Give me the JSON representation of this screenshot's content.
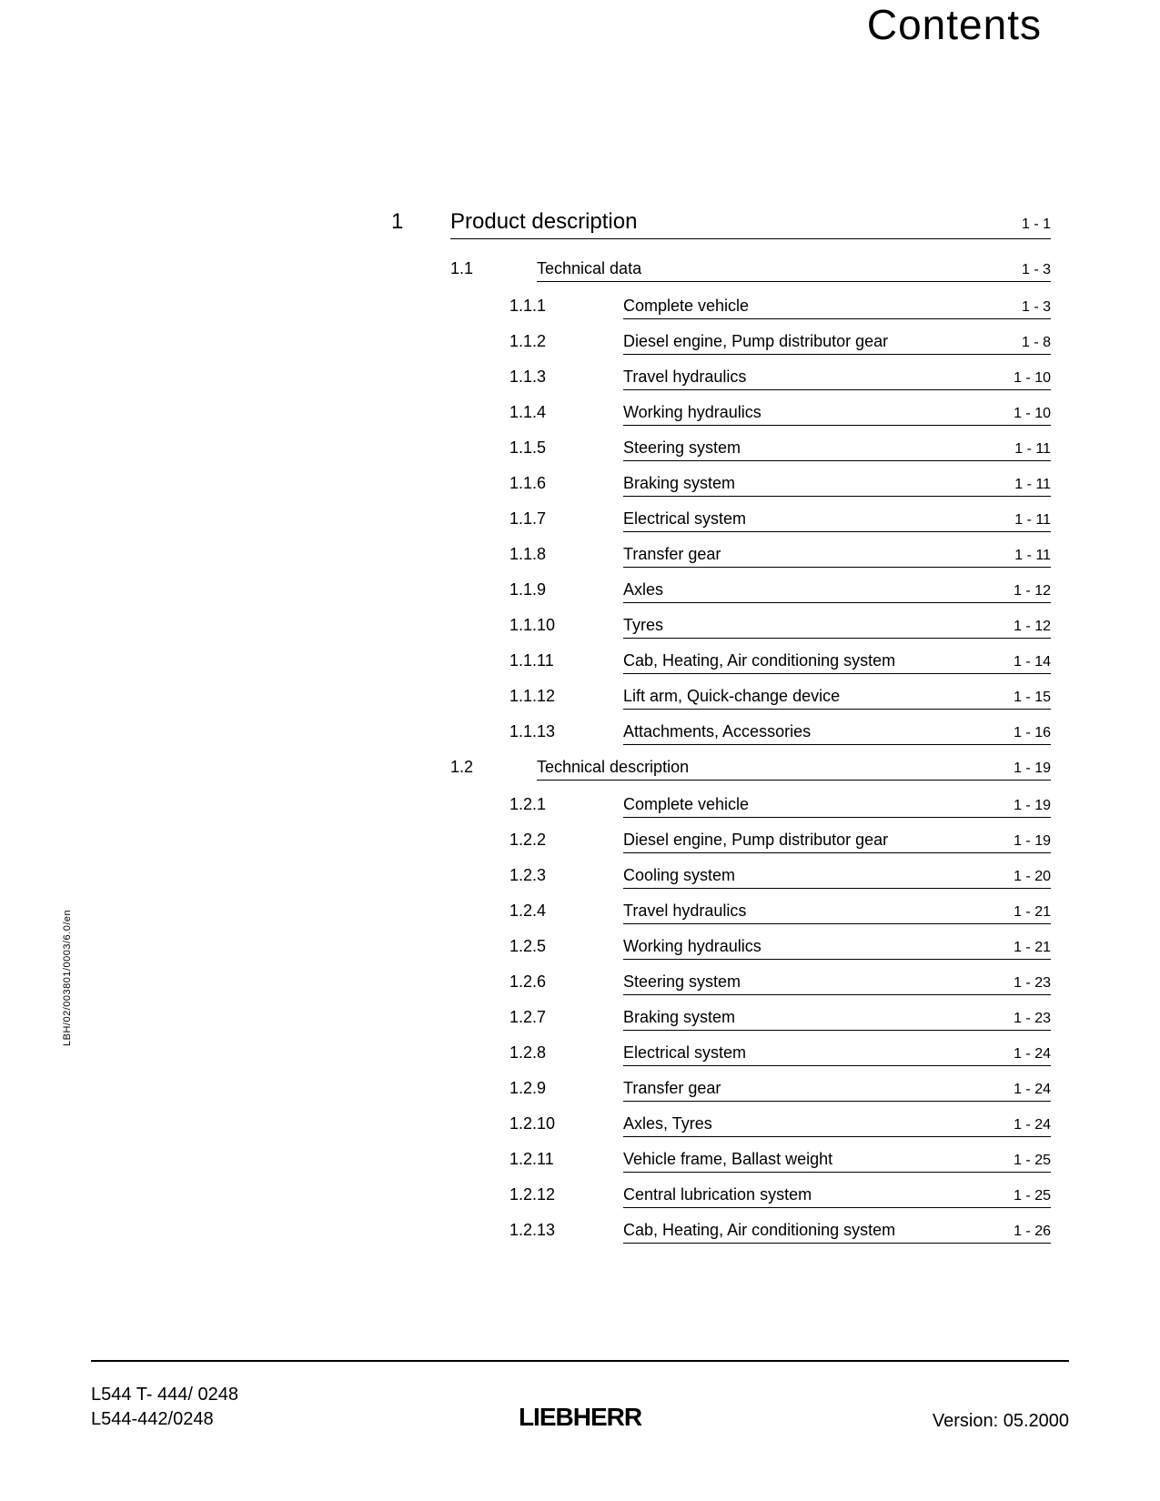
{
  "page_title": "Contents",
  "side_label": "LBH/02/003801/0003/6.0/en",
  "toc": [
    {
      "level": 1,
      "num": "1",
      "title": "Product description",
      "page": "1 - 1"
    },
    {
      "level": 2,
      "num": "1.1",
      "title": "Technical data",
      "page": "1 - 3"
    },
    {
      "level": 3,
      "num": "1.1.1",
      "title": "Complete vehicle",
      "page": "1 - 3"
    },
    {
      "level": 3,
      "num": "1.1.2",
      "title": "Diesel engine, Pump distributor gear",
      "page": "1 - 8"
    },
    {
      "level": 3,
      "num": "1.1.3",
      "title": "Travel hydraulics",
      "page": "1 - 10"
    },
    {
      "level": 3,
      "num": "1.1.4",
      "title": "Working hydraulics",
      "page": "1 - 10"
    },
    {
      "level": 3,
      "num": "1.1.5",
      "title": "Steering system",
      "page": "1 - 11"
    },
    {
      "level": 3,
      "num": "1.1.6",
      "title": "Braking system",
      "page": "1 - 11"
    },
    {
      "level": 3,
      "num": "1.1.7",
      "title": "Electrical system",
      "page": "1 - 11"
    },
    {
      "level": 3,
      "num": "1.1.8",
      "title": "Transfer gear",
      "page": "1 - 11"
    },
    {
      "level": 3,
      "num": "1.1.9",
      "title": "Axles",
      "page": "1 - 12"
    },
    {
      "level": 3,
      "num": "1.1.10",
      "title": "Tyres",
      "page": "1 - 12"
    },
    {
      "level": 3,
      "num": "1.1.11",
      "title": "Cab, Heating, Air conditioning system",
      "page": "1 - 14"
    },
    {
      "level": 3,
      "num": "1.1.12",
      "title": "Lift arm, Quick-change device",
      "page": "1 - 15"
    },
    {
      "level": 3,
      "num": "1.1.13",
      "title": "Attachments, Accessories",
      "page": "1 - 16"
    },
    {
      "level": 2,
      "num": "1.2",
      "title": "Technical description",
      "page": "1 - 19"
    },
    {
      "level": 3,
      "num": "1.2.1",
      "title": "Complete vehicle",
      "page": "1 - 19"
    },
    {
      "level": 3,
      "num": "1.2.2",
      "title": "Diesel engine, Pump distributor gear",
      "page": "1 - 19"
    },
    {
      "level": 3,
      "num": "1.2.3",
      "title": "Cooling system",
      "page": "1 - 20"
    },
    {
      "level": 3,
      "num": "1.2.4",
      "title": "Travel hydraulics",
      "page": "1 - 21"
    },
    {
      "level": 3,
      "num": "1.2.5",
      "title": "Working hydraulics",
      "page": "1 - 21"
    },
    {
      "level": 3,
      "num": "1.2.6",
      "title": "Steering system",
      "page": "1 - 23"
    },
    {
      "level": 3,
      "num": "1.2.7",
      "title": "Braking system",
      "page": "1 - 23"
    },
    {
      "level": 3,
      "num": "1.2.8",
      "title": "Electrical system",
      "page": "1 - 24"
    },
    {
      "level": 3,
      "num": "1.2.9",
      "title": "Transfer gear",
      "page": "1 - 24"
    },
    {
      "level": 3,
      "num": "1.2.10",
      "title": "Axles, Tyres",
      "page": "1 - 24"
    },
    {
      "level": 3,
      "num": "1.2.11",
      "title": "Vehicle frame, Ballast weight",
      "page": "1 - 25"
    },
    {
      "level": 3,
      "num": "1.2.12",
      "title": "Central lubrication system",
      "page": "1 - 25"
    },
    {
      "level": 3,
      "num": "1.2.13",
      "title": "Cab, Heating, Air conditioning system",
      "page": "1 - 26"
    }
  ],
  "footer": {
    "left_line1": "L544 T- 444/ 0248",
    "left_line2": "L544-442/0248",
    "center": "LIEBHERR",
    "right": "Version: 05.2000"
  }
}
